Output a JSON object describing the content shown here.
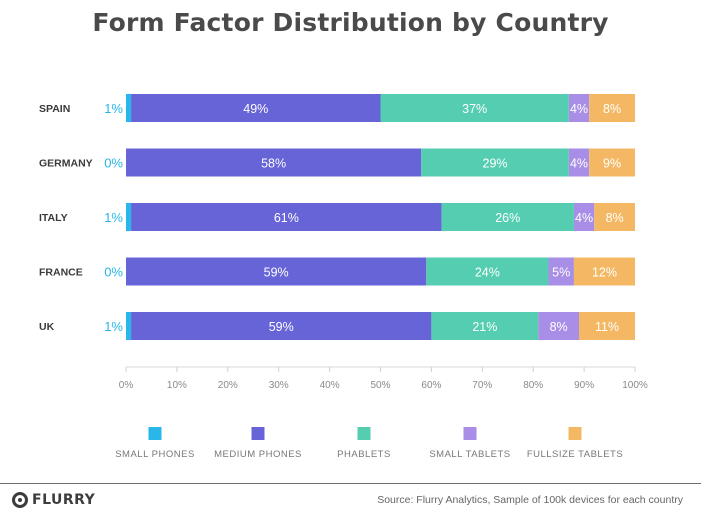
{
  "chart_data": {
    "type": "bar",
    "orientation": "horizontal",
    "stacked": true,
    "title": "Form Factor Distribution by Country",
    "categories": [
      "SPAIN",
      "GERMANY",
      "ITALY",
      "FRANCE",
      "UK"
    ],
    "series": [
      {
        "name": "SMALL PHONES",
        "color": "#29b6e8",
        "values": [
          1,
          0,
          1,
          0,
          1
        ]
      },
      {
        "name": "MEDIUM PHONES",
        "color": "#6764d8",
        "values": [
          49,
          58,
          61,
          59,
          59
        ]
      },
      {
        "name": "PHABLETS",
        "color": "#54cdb0",
        "values": [
          37,
          29,
          26,
          24,
          21
        ]
      },
      {
        "name": "SMALL TABLETS",
        "color": "#a88ee6",
        "values": [
          4,
          4,
          4,
          5,
          8
        ]
      },
      {
        "name": "FULLSIZE TABLETS",
        "color": "#f4b864",
        "values": [
          8,
          9,
          8,
          12,
          11
        ]
      }
    ],
    "data_label_suffix": "%",
    "xlim": [
      0,
      100
    ],
    "xticks": [
      "0%",
      "10%",
      "20%",
      "30%",
      "40%",
      "50%",
      "60%",
      "70%",
      "80%",
      "90%",
      "100%"
    ],
    "legend_position": "bottom",
    "grid": false
  },
  "footer": {
    "brand": "FLURRY",
    "source": "Source: Flurry Analytics, Sample of 100k devices for each country"
  }
}
